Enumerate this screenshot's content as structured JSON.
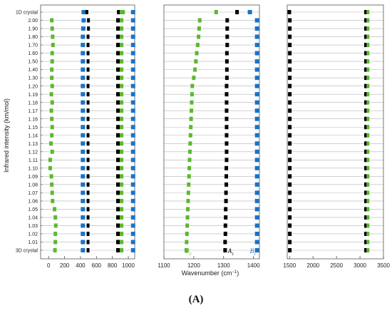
{
  "figure": {
    "label": "(A)"
  },
  "ylabel": "Infrared intensity (km/mol)",
  "xlabel_prefix": "Wavenumber (cm",
  "xlabel_sup": "−1",
  "xlabel_suffix": ")",
  "colors": {
    "green": "#5cb82e",
    "black": "#000000",
    "blue": "#1a73c8",
    "grid": "#b5b5b5",
    "frame": "#555555"
  },
  "chart_data": {
    "type": "scatter",
    "categories": [
      "1D crystal",
      "2.00",
      "1.90",
      "1.80",
      "1.70",
      "1.60",
      "1.50",
      "1.40",
      "1.30",
      "1.20",
      "1.19",
      "1.18",
      "1.17",
      "1.16",
      "1.15",
      "1.14",
      "1.13",
      "1.12",
      "1.11",
      "1.10",
      "1.09",
      "1.08",
      "1.07",
      "1.06",
      "1.05",
      "1.04",
      "1.03",
      "1.02",
      "1.01",
      "3D crystal"
    ],
    "panels": [
      {
        "xlim": [
          -100,
          1080
        ],
        "xticks": [
          0,
          200,
          400,
          600,
          800,
          1000
        ],
        "series": [
          {
            "name": "green-low",
            "color": "green",
            "width": 5,
            "values": [
              935,
              40,
              45,
              50,
              55,
              45,
              45,
              40,
              40,
              45,
              35,
              45,
              35,
              40,
              45,
              40,
              30,
              45,
              20,
              20,
              35,
              40,
              45,
              50,
              75,
              85,
              90,
              85,
              85,
              80
            ]
          },
          {
            "name": "blue-430",
            "color": "blue",
            "width": 6,
            "values": [
              440,
              440,
              435,
              430,
              430,
              430,
              430,
              430,
              430,
              430,
              430,
              430,
              430,
              430,
              430,
              430,
              430,
              430,
              430,
              430,
              430,
              430,
              430,
              430,
              430,
              430,
              430,
              430,
              430,
              430
            ]
          },
          {
            "name": "black-480",
            "color": "black",
            "width": 4,
            "values": [
              480,
              500,
              500,
              495,
              495,
              495,
              495,
              495,
              495,
              495,
              495,
              495,
              495,
              495,
              495,
              495,
              495,
              495,
              495,
              495,
              495,
              495,
              495,
              495,
              495,
              495,
              495,
              495,
              495,
              495
            ]
          },
          {
            "name": "black-870",
            "color": "black",
            "width": 5,
            "values": [
              880,
              870,
              870,
              870,
              870,
              870,
              870,
              870,
              870,
              870,
              870,
              870,
              870,
              870,
              870,
              870,
              870,
              870,
              870,
              870,
              870,
              870,
              870,
              870,
              870,
              870,
              870,
              870,
              870,
              870
            ]
          },
          {
            "name": "green-915",
            "color": "green",
            "width": 5,
            "values": [
              915,
              915,
              915,
              915,
              915,
              915,
              915,
              915,
              915,
              915,
              915,
              915,
              915,
              915,
              915,
              915,
              915,
              915,
              915,
              915,
              915,
              915,
              915,
              915,
              915,
              915,
              915,
              915,
              915,
              915
            ]
          },
          {
            "name": "blue-1060",
            "color": "blue",
            "width": 6,
            "values": [
              1060,
              1060,
              1060,
              1060,
              1060,
              1060,
              1060,
              1060,
              1060,
              1060,
              1060,
              1060,
              1060,
              1060,
              1060,
              1060,
              1060,
              1060,
              1060,
              1060,
              1060,
              1060,
              1060,
              1060,
              1060,
              1060,
              1060,
              1060,
              1060,
              1060
            ]
          }
        ]
      },
      {
        "xlim": [
          1100,
          1420
        ],
        "xticks": [
          1100,
          1200,
          1300,
          1400
        ],
        "series": [
          {
            "name": "B2",
            "color": "green",
            "width": 5,
            "values": [
              1275,
              1220,
              1218,
              1216,
              1213,
              1210,
              1207,
              1204,
              1200,
              1195,
              1194,
              1193,
              1192,
              1191,
              1190,
              1189,
              1188,
              1187,
              1186,
              1185,
              1184,
              1183,
              1182,
              1181,
              1180,
              1179,
              1178,
              1177,
              1176,
              1175
            ]
          },
          {
            "name": "A1",
            "color": "black",
            "width": 5,
            "values": [
              1345,
              1312,
              1312,
              1312,
              1312,
              1311,
              1311,
              1311,
              1311,
              1310,
              1310,
              1310,
              1310,
              1310,
              1310,
              1310,
              1310,
              1310,
              1310,
              1309,
              1309,
              1309,
              1308,
              1308,
              1307,
              1307,
              1306,
              1306,
              1305,
              1305
            ]
          },
          {
            "name": "B1",
            "color": "blue",
            "width": 6,
            "values": [
              1388,
              1412,
              1412,
              1412,
              1412,
              1412,
              1412,
              1412,
              1412,
              1412,
              1412,
              1412,
              1412,
              1412,
              1412,
              1412,
              1412,
              1412,
              1412,
              1412,
              1412,
              1412,
              1412,
              1412,
              1412,
              1412,
              1412,
              1412,
              1412,
              1412
            ]
          }
        ]
      },
      {
        "xlim": [
          1450,
          3500
        ],
        "xticks": [
          1500,
          2000,
          2500,
          3000,
          3500
        ],
        "series": [
          {
            "name": "black-1500",
            "color": "black",
            "width": 5,
            "values": [
              1495,
              1505,
              1505,
              1505,
              1505,
              1505,
              1505,
              1505,
              1505,
              1505,
              1505,
              1505,
              1505,
              1505,
              1505,
              1505,
              1505,
              1505,
              1505,
              1505,
              1505,
              1505,
              1505,
              1505,
              1505,
              1505,
              1505,
              1505,
              1505,
              1505
            ]
          },
          {
            "name": "black-3120",
            "color": "black",
            "width": 4,
            "values": [
              3120,
              3120,
              3120,
              3120,
              3120,
              3120,
              3120,
              3120,
              3120,
              3120,
              3120,
              3120,
              3120,
              3120,
              3120,
              3120,
              3120,
              3120,
              3120,
              3120,
              3120,
              3120,
              3120,
              3120,
              3120,
              3120,
              3120,
              3120,
              3120,
              3120
            ]
          },
          {
            "name": "green-3170",
            "color": "green",
            "width": 4,
            "values": [
              3170,
              3170,
              3170,
              3170,
              3170,
              3170,
              3170,
              3170,
              3170,
              3170,
              3170,
              3170,
              3170,
              3170,
              3170,
              3170,
              3170,
              3170,
              3170,
              3170,
              3170,
              3170,
              3170,
              3170,
              3170,
              3170,
              3170,
              3170,
              3170,
              3170
            ]
          }
        ]
      }
    ],
    "annotations": [
      {
        "panel": 1,
        "series": "B2",
        "base": "B",
        "sub": "2",
        "color": "green",
        "x": 1172
      },
      {
        "panel": 1,
        "series": "A1",
        "base": "A",
        "sub": "1",
        "color": "black",
        "x": 1314
      },
      {
        "panel": 1,
        "series": "B1",
        "base": "B",
        "sub": "1",
        "color": "blue",
        "x": 1388
      }
    ]
  }
}
